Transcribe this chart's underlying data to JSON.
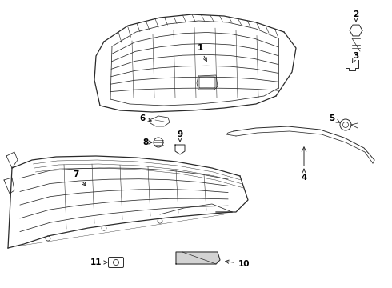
{
  "bg_color": "#ffffff",
  "line_color": "#2a2a2a",
  "label_color": "#000000",
  "lw_main": 0.9,
  "lw_thin": 0.55,
  "lw_med": 0.7
}
